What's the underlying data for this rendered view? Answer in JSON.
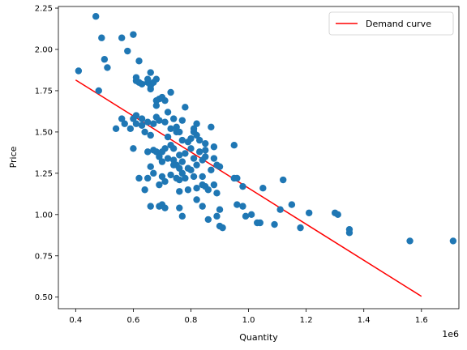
{
  "chart_data": {
    "type": "scatter",
    "title": "",
    "xlabel": "Quantity",
    "ylabel": "Price",
    "x_offset_label": "1e6",
    "x_scale": 1000000,
    "xlim": [
      0.34,
      1.73
    ],
    "ylim": [
      0.43,
      2.26
    ],
    "x_ticks": [
      0.4,
      0.6,
      0.8,
      1.0,
      1.2,
      1.4,
      1.6
    ],
    "x_tick_labels": [
      "0.4",
      "0.6",
      "0.8",
      "1.0",
      "1.2",
      "1.4",
      "1.6"
    ],
    "y_ticks": [
      0.5,
      0.75,
      1.0,
      1.25,
      1.5,
      1.75,
      2.0,
      2.25
    ],
    "y_tick_labels": [
      "0.50",
      "0.75",
      "1.00",
      "1.25",
      "1.50",
      "1.75",
      "2.00",
      "2.25"
    ],
    "grid": false,
    "legend_position": "top-right",
    "legend": [
      {
        "label": "Demand curve",
        "kind": "line",
        "color": "#ff0000"
      }
    ],
    "points_color": "#1f77b4",
    "line_color": "#ff0000",
    "points": [
      [
        0.41,
        1.87
      ],
      [
        0.47,
        2.2
      ],
      [
        0.48,
        1.75
      ],
      [
        0.49,
        2.07
      ],
      [
        0.5,
        1.94
      ],
      [
        0.51,
        1.89
      ],
      [
        0.54,
        1.52
      ],
      [
        0.56,
        2.07
      ],
      [
        0.56,
        1.58
      ],
      [
        0.57,
        1.55
      ],
      [
        0.58,
        1.99
      ],
      [
        0.59,
        1.52
      ],
      [
        0.6,
        2.09
      ],
      [
        0.6,
        1.4
      ],
      [
        0.6,
        1.58
      ],
      [
        0.61,
        1.81
      ],
      [
        0.61,
        1.83
      ],
      [
        0.61,
        1.6
      ],
      [
        0.61,
        1.55
      ],
      [
        0.62,
        1.93
      ],
      [
        0.62,
        1.8
      ],
      [
        0.62,
        1.22
      ],
      [
        0.63,
        1.79
      ],
      [
        0.63,
        1.58
      ],
      [
        0.63,
        1.54
      ],
      [
        0.64,
        1.5
      ],
      [
        0.64,
        1.15
      ],
      [
        0.65,
        1.8
      ],
      [
        0.65,
        1.82
      ],
      [
        0.65,
        1.56
      ],
      [
        0.65,
        1.38
      ],
      [
        0.65,
        1.22
      ],
      [
        0.66,
        1.86
      ],
      [
        0.66,
        1.76
      ],
      [
        0.66,
        1.78
      ],
      [
        0.66,
        1.48
      ],
      [
        0.66,
        1.29
      ],
      [
        0.66,
        1.05
      ],
      [
        0.67,
        1.8
      ],
      [
        0.67,
        1.55
      ],
      [
        0.67,
        1.39
      ],
      [
        0.67,
        1.25
      ],
      [
        0.68,
        1.82
      ],
      [
        0.68,
        1.69
      ],
      [
        0.68,
        1.66
      ],
      [
        0.68,
        1.59
      ],
      [
        0.68,
        1.38
      ],
      [
        0.69,
        1.7
      ],
      [
        0.69,
        1.57
      ],
      [
        0.69,
        1.35
      ],
      [
        0.69,
        1.18
      ],
      [
        0.69,
        1.05
      ],
      [
        0.7,
        1.71
      ],
      [
        0.7,
        1.38
      ],
      [
        0.7,
        1.32
      ],
      [
        0.7,
        1.23
      ],
      [
        0.7,
        1.06
      ],
      [
        0.71,
        1.69
      ],
      [
        0.71,
        1.56
      ],
      [
        0.71,
        1.4
      ],
      [
        0.71,
        1.2
      ],
      [
        0.71,
        1.04
      ],
      [
        0.72,
        1.62
      ],
      [
        0.72,
        1.47
      ],
      [
        0.72,
        1.34
      ],
      [
        0.73,
        1.74
      ],
      [
        0.73,
        1.52
      ],
      [
        0.73,
        1.42
      ],
      [
        0.73,
        1.24
      ],
      [
        0.74,
        1.58
      ],
      [
        0.74,
        1.4
      ],
      [
        0.74,
        1.33
      ],
      [
        0.74,
        1.3
      ],
      [
        0.75,
        1.53
      ],
      [
        0.75,
        1.5
      ],
      [
        0.75,
        1.3
      ],
      [
        0.75,
        1.22
      ],
      [
        0.76,
        1.5
      ],
      [
        0.76,
        1.36
      ],
      [
        0.76,
        1.28
      ],
      [
        0.76,
        1.21
      ],
      [
        0.76,
        1.14
      ],
      [
        0.76,
        1.04
      ],
      [
        0.77,
        1.57
      ],
      [
        0.77,
        1.45
      ],
      [
        0.77,
        1.32
      ],
      [
        0.77,
        1.25
      ],
      [
        0.77,
        0.99
      ],
      [
        0.78,
        1.65
      ],
      [
        0.78,
        1.37
      ],
      [
        0.78,
        1.22
      ],
      [
        0.79,
        1.44
      ],
      [
        0.79,
        1.28
      ],
      [
        0.79,
        1.15
      ],
      [
        0.8,
        1.46
      ],
      [
        0.8,
        1.4
      ],
      [
        0.8,
        1.27
      ],
      [
        0.81,
        1.5
      ],
      [
        0.81,
        1.52
      ],
      [
        0.81,
        1.34
      ],
      [
        0.81,
        1.23
      ],
      [
        0.82,
        1.55
      ],
      [
        0.82,
        1.48
      ],
      [
        0.82,
        1.3
      ],
      [
        0.82,
        1.16
      ],
      [
        0.82,
        1.09
      ],
      [
        0.83,
        1.45
      ],
      [
        0.83,
        1.38
      ],
      [
        0.84,
        1.33
      ],
      [
        0.84,
        1.23
      ],
      [
        0.84,
        1.18
      ],
      [
        0.84,
        1.05
      ],
      [
        0.85,
        1.43
      ],
      [
        0.85,
        1.39
      ],
      [
        0.85,
        1.35
      ],
      [
        0.85,
        1.17
      ],
      [
        0.86,
        1.15
      ],
      [
        0.86,
        0.97
      ],
      [
        0.87,
        1.53
      ],
      [
        0.87,
        1.27
      ],
      [
        0.88,
        1.41
      ],
      [
        0.88,
        1.34
      ],
      [
        0.88,
        1.18
      ],
      [
        0.89,
        1.3
      ],
      [
        0.89,
        1.13
      ],
      [
        0.89,
        0.99
      ],
      [
        0.9,
        1.29
      ],
      [
        0.9,
        1.03
      ],
      [
        0.9,
        0.93
      ],
      [
        0.91,
        0.92
      ],
      [
        0.95,
        1.42
      ],
      [
        0.95,
        1.22
      ],
      [
        0.96,
        1.22
      ],
      [
        0.96,
        1.06
      ],
      [
        0.98,
        1.17
      ],
      [
        0.98,
        1.05
      ],
      [
        0.99,
        0.99
      ],
      [
        1.01,
        1.0
      ],
      [
        1.03,
        0.95
      ],
      [
        1.04,
        0.95
      ],
      [
        1.05,
        1.16
      ],
      [
        1.09,
        0.94
      ],
      [
        1.11,
        1.03
      ],
      [
        1.12,
        1.21
      ],
      [
        1.15,
        1.06
      ],
      [
        1.18,
        0.92
      ],
      [
        1.21,
        1.01
      ],
      [
        1.3,
        1.01
      ],
      [
        1.31,
        1.0
      ],
      [
        1.35,
        0.91
      ],
      [
        1.35,
        0.89
      ],
      [
        1.56,
        0.84
      ],
      [
        1.71,
        0.84
      ]
    ],
    "line": {
      "x": [
        0.4,
        1.6
      ],
      "y": [
        1.815,
        0.505
      ]
    }
  }
}
